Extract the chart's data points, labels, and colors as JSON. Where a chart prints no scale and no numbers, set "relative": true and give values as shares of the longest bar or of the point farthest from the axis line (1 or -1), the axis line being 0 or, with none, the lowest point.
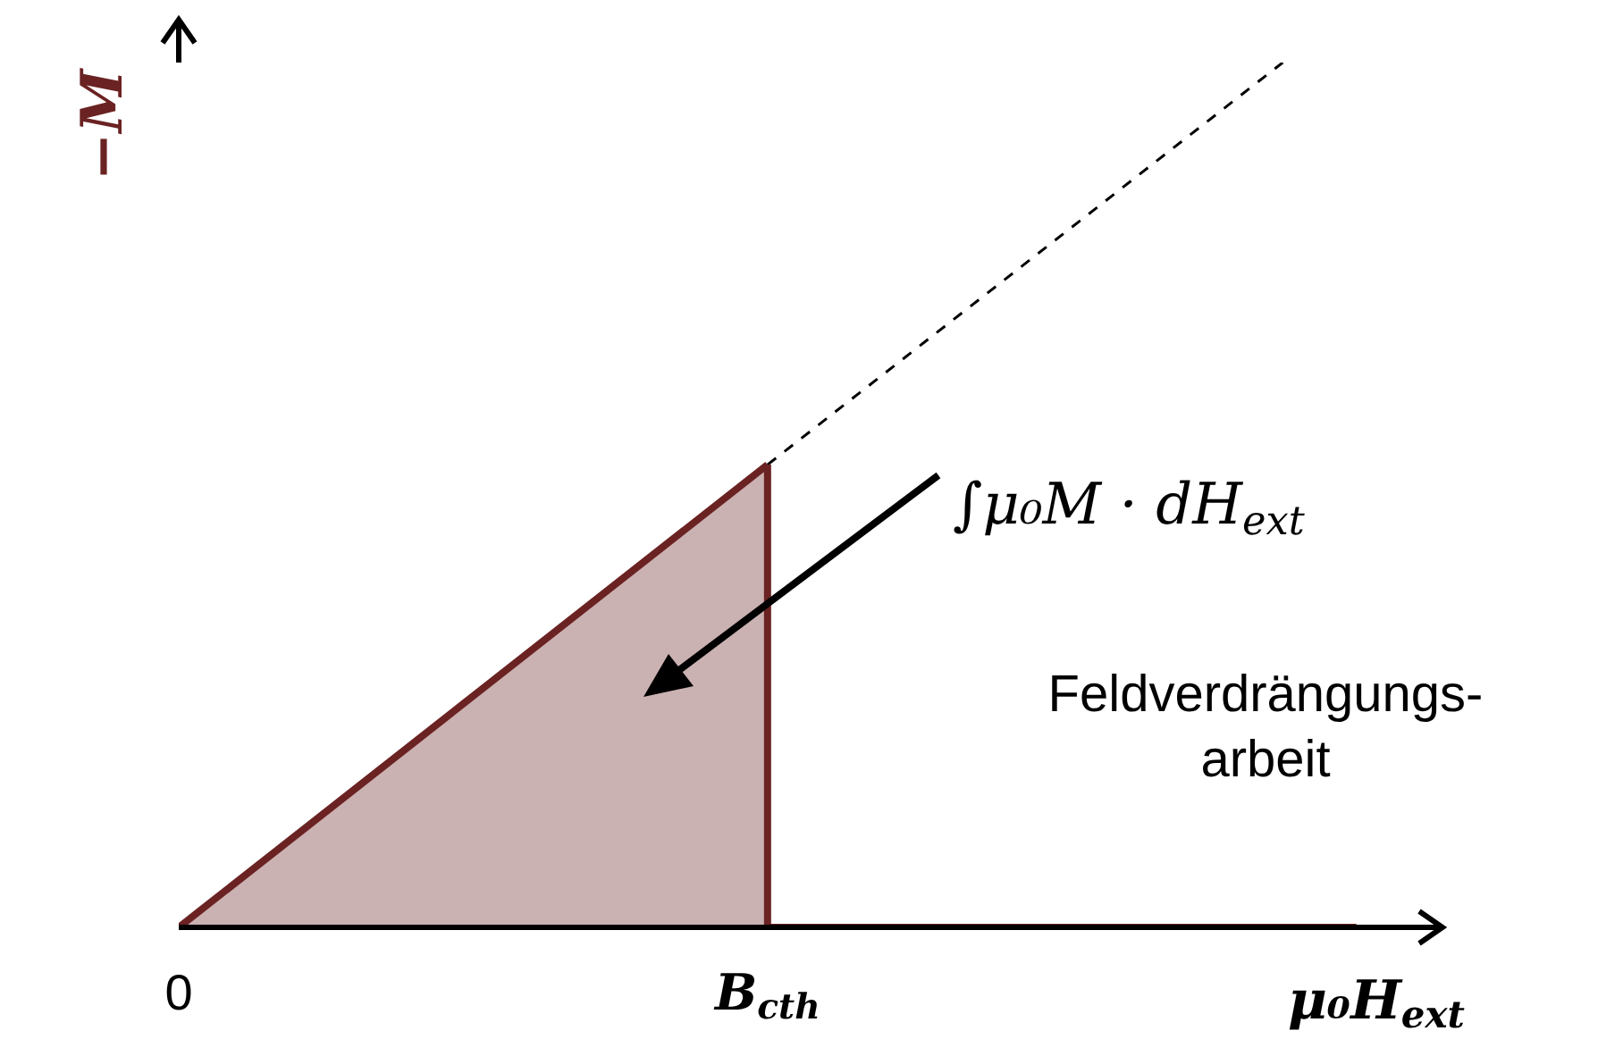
{
  "chart_data": {
    "type": "area",
    "relative": true,
    "xlabel": "μ₀H$_{ext}$",
    "ylabel": "−M",
    "categories": [
      "0",
      null,
      null,
      null,
      null,
      null,
      null,
      null,
      "B$_{cth}$",
      null,
      null,
      null,
      null,
      null,
      null,
      null,
      null
    ],
    "grid": false,
    "legend": false,
    "series": [
      {
        "color": "#6b2222",
        "values": [
          0,
          null,
          null,
          null,
          null,
          null,
          null,
          null,
          0.535,
          null,
          null,
          null,
          null,
          null,
          null,
          null,
          null
        ]
      },
      {
        "type": "line",
        "color": "#6b2222",
        "values": [
          null,
          null,
          null,
          null,
          null,
          null,
          null,
          null,
          0,
          null,
          null,
          null,
          null,
          null,
          null,
          null,
          0
        ]
      },
      {
        "type": "line",
        "color": "#000000",
        "line_style": "dashed",
        "values": [
          null,
          null,
          null,
          null,
          null,
          null,
          null,
          null,
          0.535,
          null,
          null,
          null,
          null,
          null,
          null,
          1,
          null
        ]
      }
    ],
    "ref_lines": [
      {
        "axis": "x",
        "value": "B$_{cth}$",
        "color": "#6b2222"
      }
    ],
    "annotations": [
      "∫μ₀M · dH$_{ext}$",
      "Feldverdrängungs-\narbeit"
    ]
  }
}
